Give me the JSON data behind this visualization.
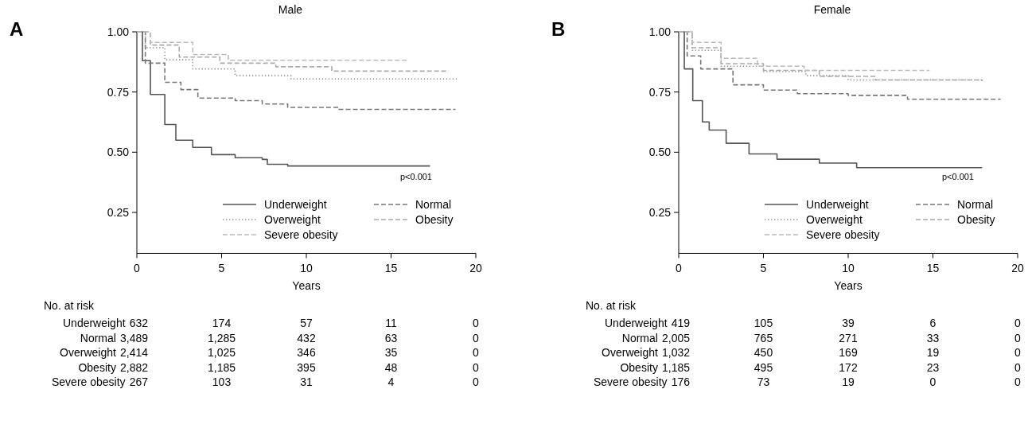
{
  "chart_data": [
    {
      "type": "step",
      "title": "Male",
      "xlabel": "Years",
      "xlim": [
        0,
        20
      ],
      "xticks": [
        0,
        5,
        10,
        15,
        20
      ],
      "ylim": [
        0.08,
        1.0
      ],
      "yticks": [
        {
          "value": 1.0,
          "label": "1.00"
        },
        {
          "value": 0.75,
          "label": "0.75"
        },
        {
          "value": 0.5,
          "label": "0.50"
        },
        {
          "value": 0.25,
          "label": "0.25"
        }
      ],
      "legend": "bottom right",
      "grid": false,
      "series": [
        {
          "name": "Underweight",
          "color": "#555555",
          "line_style": "solid",
          "x": [
            0,
            0.33,
            0.8,
            1.65,
            2.3,
            3.3,
            4.4,
            5.8,
            7.4,
            7.7,
            8.9,
            17.3
          ],
          "values": [
            1,
            0.88,
            0.74,
            0.615,
            0.55,
            0.52,
            0.49,
            0.477,
            0.47,
            0.45,
            0.443,
            0.443
          ]
        },
        {
          "name": "Normal",
          "color": "#777777",
          "line_style": "dashed",
          "x": [
            0,
            0.5,
            1.65,
            2.6,
            3.6,
            5.8,
            7.4,
            8.9,
            11.9,
            18.8
          ],
          "values": [
            1,
            0.87,
            0.79,
            0.76,
            0.725,
            0.714,
            0.7,
            0.686,
            0.678,
            0.678
          ]
        },
        {
          "name": "Overweight",
          "color": "#999999",
          "line_style": "dotted",
          "x": [
            0,
            0.5,
            1.65,
            3.3,
            5.8,
            9.1,
            18.9
          ],
          "values": [
            1,
            0.934,
            0.884,
            0.846,
            0.818,
            0.804,
            0.802
          ]
        },
        {
          "name": "Obesity",
          "color": "#aaaaaa",
          "line_style": "dashed",
          "x": [
            0,
            0.8,
            2.5,
            4.9,
            8.2,
            11.5,
            18.4
          ],
          "values": [
            1,
            0.945,
            0.895,
            0.87,
            0.855,
            0.837,
            0.837
          ]
        },
        {
          "name": "Severe obesity",
          "color": "#bbbbbb",
          "line_style": "dashed",
          "x": [
            0,
            0.8,
            3.3,
            5.4,
            16
          ],
          "values": [
            1,
            0.956,
            0.906,
            0.882,
            0.882
          ]
        }
      ],
      "annotations": [
        "A",
        "p<0.001",
        "No. at risk",
        "Underweight",
        "632",
        "174",
        "57",
        "11",
        "0",
        "Normal",
        "3,489",
        "1,285",
        "432",
        "63",
        "0",
        "Overweight",
        "2,414",
        "1,025",
        "346",
        "35",
        "0",
        "Obesity",
        "2,882",
        "1,185",
        "395",
        "48",
        "0",
        "Severe obesity",
        "267",
        "103",
        "31",
        "4",
        "0"
      ]
    },
    {
      "type": "step",
      "title": "Female",
      "xlabel": "Years",
      "xlim": [
        0,
        20
      ],
      "xticks": [
        0,
        5,
        10,
        15,
        20
      ],
      "ylim": [
        0.08,
        1.0
      ],
      "yticks": [
        {
          "value": 1.0,
          "label": "1.00"
        },
        {
          "value": 0.75,
          "label": "0.75"
        },
        {
          "value": 0.5,
          "label": "0.50"
        },
        {
          "value": 0.25,
          "label": "0.25"
        }
      ],
      "legend": "bottom right",
      "grid": false,
      "series": [
        {
          "name": "Underweight",
          "color": "#555555",
          "line_style": "solid",
          "x": [
            0,
            0.33,
            0.83,
            1.4,
            1.8,
            2.8,
            4.15,
            5.8,
            8.3,
            10.5,
            17.9
          ],
          "values": [
            1,
            0.846,
            0.714,
            0.626,
            0.592,
            0.537,
            0.493,
            0.471,
            0.455,
            0.436,
            0.436
          ]
        },
        {
          "name": "Normal",
          "color": "#777777",
          "line_style": "dashed",
          "x": [
            0,
            0.5,
            1.3,
            3.2,
            5,
            7,
            10,
            13.5,
            19
          ],
          "values": [
            1,
            0.9,
            0.846,
            0.78,
            0.758,
            0.743,
            0.736,
            0.72,
            0.72
          ]
        },
        {
          "name": "Overweight",
          "color": "#999999",
          "line_style": "dotted",
          "x": [
            0,
            0.8,
            2.5,
            5,
            7.5,
            10,
            17.9
          ],
          "values": [
            1,
            0.923,
            0.857,
            0.835,
            0.818,
            0.8,
            0.798
          ]
        },
        {
          "name": "Obesity",
          "color": "#aaaaaa",
          "line_style": "dashed",
          "x": [
            0,
            0.8,
            2.5,
            5,
            8.3,
            11.6,
            17.9
          ],
          "values": [
            1,
            0.934,
            0.868,
            0.84,
            0.815,
            0.8,
            0.795
          ]
        },
        {
          "name": "Severe obesity",
          "color": "#bbbbbb",
          "line_style": "dashed",
          "x": [
            0,
            0.8,
            2.5,
            4.65,
            7.1,
            7.4,
            14.8
          ],
          "values": [
            1,
            0.956,
            0.89,
            0.857,
            0.857,
            0.84,
            0.84
          ]
        }
      ],
      "annotations": [
        "B",
        "p<0.001",
        "No. at risk",
        "Underweight",
        "419",
        "105",
        "39",
        "6",
        "0",
        "Normal",
        "2,005",
        "765",
        "271",
        "33",
        "0",
        "Overweight",
        "1,032",
        "450",
        "169",
        "19",
        "0",
        "Obesity",
        "1,185",
        "495",
        "172",
        "23",
        "0",
        "Severe obesity",
        "176",
        "73",
        "19",
        "0",
        "0"
      ]
    }
  ]
}
